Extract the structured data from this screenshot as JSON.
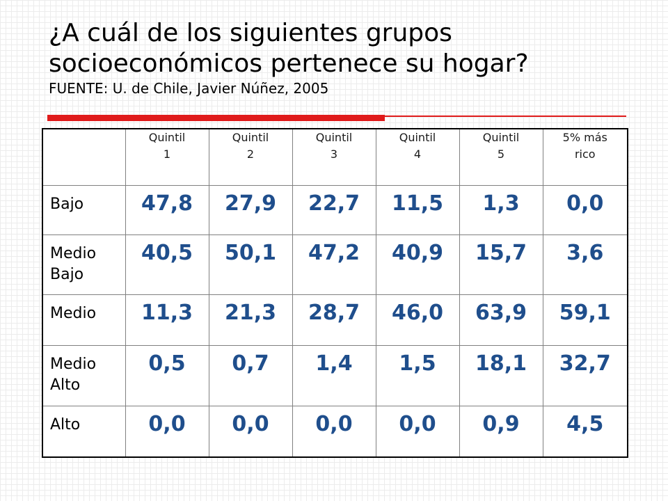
{
  "title": {
    "line1": "¿A cuál de los siguientes grupos",
    "line2": "socioeconómicos pertenece su hogar?",
    "source": "FUENTE: U. de Chile, Javier Núñez, 2005"
  },
  "colors": {
    "accent_rule": "#e01b1b",
    "value_text": "#1f4e8c"
  },
  "table": {
    "columns": [
      {
        "line1": "Quintil",
        "line2": "1"
      },
      {
        "line1": "Quintil",
        "line2": "2"
      },
      {
        "line1": "Quintil",
        "line2": "3"
      },
      {
        "line1": "Quintil",
        "line2": "4"
      },
      {
        "line1": "Quintil",
        "line2": "5"
      },
      {
        "line1": "5% más",
        "line2": "rico"
      }
    ],
    "rows": [
      {
        "label1": "Bajo",
        "label2": "",
        "values": [
          "47,8",
          "27,9",
          "22,7",
          "11,5",
          "1,3",
          "0,0"
        ]
      },
      {
        "label1": "Medio",
        "label2": "Bajo",
        "values": [
          "40,5",
          "50,1",
          "47,2",
          "40,9",
          "15,7",
          "3,6"
        ]
      },
      {
        "label1": "Medio",
        "label2": "",
        "values": [
          "11,3",
          "21,3",
          "28,7",
          "46,0",
          "63,9",
          "59,1"
        ]
      },
      {
        "label1": "Medio",
        "label2": "Alto",
        "values": [
          "0,5",
          "0,7",
          "1,4",
          "1,5",
          "18,1",
          "32,7"
        ]
      },
      {
        "label1": "Alto",
        "label2": "",
        "values": [
          "0,0",
          "0,0",
          "0,0",
          "0,0",
          "0,9",
          "4,5"
        ]
      }
    ]
  }
}
